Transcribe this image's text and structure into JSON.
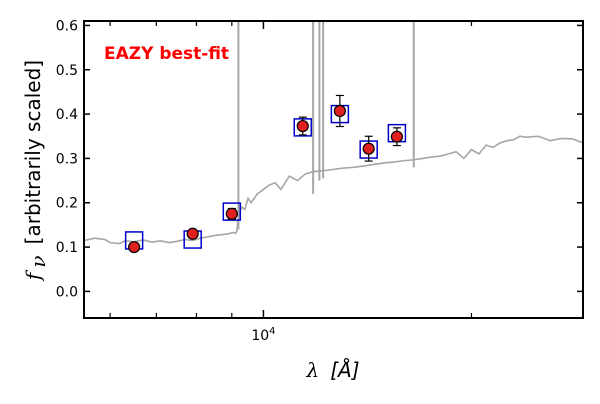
{
  "chart_data": {
    "type": "scatter",
    "annotation": "EAZY best-fit",
    "xlabel_symbol": "λ",
    "xlabel_unit": "[Å]",
    "ylabel_symbol": "f",
    "ylabel_subscript": "ν",
    "ylabel_text": "[arbitrarily scaled]",
    "x_scale": "log",
    "xlim": [
      5500,
      29000
    ],
    "ylim": [
      -0.06,
      0.61
    ],
    "y_ticks": [
      0.0,
      0.1,
      0.2,
      0.3,
      0.4,
      0.5,
      0.6
    ],
    "y_tick_labels": [
      "0.0",
      "0.1",
      "0.2",
      "0.3",
      "0.4",
      "0.5",
      "0.6"
    ],
    "x_major_ticks": [
      10000
    ],
    "x_major_tick_labels_base": "10",
    "x_major_tick_labels_exp": "4",
    "x_minor_ticks": [
      6000,
      7000,
      8000,
      9000,
      20000
    ],
    "grid": false,
    "series": [
      {
        "kind": "model_spectrum",
        "color": "#a6a6a6",
        "x": [
          5500,
          5700,
          5900,
          6000,
          6200,
          6300,
          6500,
          6700,
          6900,
          7100,
          7300,
          7500,
          7700,
          7900,
          8100,
          8300,
          8500,
          8700,
          8900,
          9050,
          9110,
          9150,
          9200,
          9300,
          9400,
          9500,
          9600,
          9800,
          10000,
          10200,
          10400,
          10600,
          10900,
          11200,
          11500,
          11800,
          12200,
          12600,
          13000,
          13500,
          14000,
          14500,
          15000,
          15500,
          16000,
          16500,
          17000,
          17500,
          18000,
          18500,
          19000,
          19500,
          20000,
          20500,
          21000,
          21500,
          22000,
          22500,
          23000,
          23500,
          24000,
          25000,
          26000,
          27000,
          28000,
          29000
        ],
        "y": [
          0.115,
          0.12,
          0.117,
          0.11,
          0.108,
          0.114,
          0.112,
          0.116,
          0.111,
          0.114,
          0.11,
          0.113,
          0.117,
          0.115,
          0.12,
          0.123,
          0.126,
          0.128,
          0.13,
          0.133,
          0.131,
          0.135,
          0.17,
          0.19,
          0.185,
          0.21,
          0.2,
          0.22,
          0.23,
          0.24,
          0.245,
          0.23,
          0.26,
          0.25,
          0.265,
          0.27,
          0.272,
          0.275,
          0.278,
          0.28,
          0.283,
          0.287,
          0.29,
          0.292,
          0.295,
          0.297,
          0.3,
          0.303,
          0.305,
          0.31,
          0.315,
          0.3,
          0.32,
          0.31,
          0.33,
          0.325,
          0.335,
          0.34,
          0.342,
          0.35,
          0.348,
          0.35,
          0.34,
          0.345,
          0.344,
          0.335
        ]
      },
      {
        "kind": "emission_lines",
        "color": "#a6a6a6",
        "lines": [
          {
            "x": 9200,
            "y_base": 0.14
          },
          {
            "x": 11800,
            "y_base": 0.22
          },
          {
            "x": 12050,
            "y_base": 0.25
          },
          {
            "x": 12200,
            "y_base": 0.255
          },
          {
            "x": 16500,
            "y_base": 0.28
          }
        ]
      },
      {
        "kind": "model_photometry",
        "marker": "square",
        "edge_color": "#0000cc",
        "x": [
          6500,
          7900,
          9000,
          11400,
          12900,
          14200,
          15600
        ],
        "y": [
          0.115,
          0.117,
          0.18,
          0.37,
          0.4,
          0.32,
          0.357
        ]
      },
      {
        "kind": "observed_photometry",
        "marker": "circle",
        "face_color": "#e01f1f",
        "edge_color": "#000000",
        "x": [
          6500,
          7900,
          9000,
          11400,
          12900,
          14200,
          15600
        ],
        "y": [
          0.1,
          0.13,
          0.175,
          0.373,
          0.407,
          0.322,
          0.349
        ],
        "yerr": [
          0.007,
          0.006,
          0.012,
          0.02,
          0.035,
          0.028,
          0.02
        ]
      }
    ]
  },
  "annotation_color": "#ff0000"
}
